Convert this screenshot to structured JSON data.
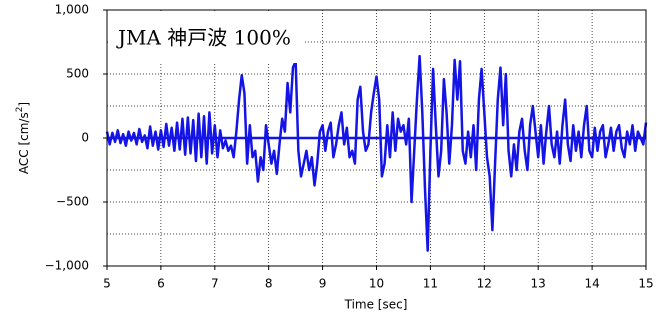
{
  "chart_data": {
    "type": "line",
    "annotation": "JMA 神戸波 100%",
    "xlabel": "Time [sec]",
    "ylabel": "ACC [cm/s",
    "ylabel_sup": "2",
    "ylabel_end": "]",
    "xlim": [
      5,
      15
    ],
    "xticks": [
      5,
      6,
      7,
      8,
      9,
      10,
      11,
      12,
      13,
      14,
      15
    ],
    "ylim": [
      -1000,
      1000
    ],
    "yticks": [
      {
        "value": -1000,
        "label": "−1,000"
      },
      {
        "value": -500,
        "label": "−500"
      },
      0,
      500,
      {
        "value": 1000,
        "label": "1,000"
      }
    ],
    "yminor_grid": [
      -750,
      -250,
      250,
      750
    ],
    "grid": true,
    "color": "#1414e6",
    "x": [
      5,
      5.05,
      5.1,
      5.15,
      5.2,
      5.25,
      5.3,
      5.35,
      5.4,
      5.45,
      5.5,
      5.55,
      5.6,
      5.65,
      5.7,
      5.75,
      5.8,
      5.85,
      5.9,
      5.95,
      6,
      6.05,
      6.1,
      6.15,
      6.2,
      6.25,
      6.3,
      6.35,
      6.4,
      6.45,
      6.5,
      6.55,
      6.6,
      6.65,
      6.7,
      6.75,
      6.8,
      6.85,
      6.9,
      6.95,
      7,
      7.05,
      7.1,
      7.15,
      7.2,
      7.25,
      7.3,
      7.35,
      7.4,
      7.45,
      7.5,
      7.55,
      7.6,
      7.65,
      7.7,
      7.75,
      7.8,
      7.85,
      7.9,
      7.95,
      8,
      8.05,
      8.1,
      8.15,
      8.2,
      8.25,
      8.3,
      8.35,
      8.4,
      8.45,
      8.5,
      8.55,
      8.6,
      8.65,
      8.7,
      8.75,
      8.8,
      8.85,
      8.9,
      8.95,
      9,
      9.05,
      9.1,
      9.15,
      9.2,
      9.25,
      9.3,
      9.35,
      9.4,
      9.45,
      9.5,
      9.55,
      9.6,
      9.65,
      9.7,
      9.75,
      9.8,
      9.85,
      9.9,
      9.95,
      10,
      10.05,
      10.1,
      10.15,
      10.2,
      10.25,
      10.3,
      10.35,
      10.4,
      10.45,
      10.5,
      10.55,
      10.6,
      10.65,
      10.7,
      10.75,
      10.8,
      10.85,
      10.9,
      10.95,
      11,
      11.05,
      11.1,
      11.15,
      11.2,
      11.25,
      11.3,
      11.35,
      11.4,
      11.45,
      11.5,
      11.55,
      11.6,
      11.65,
      11.7,
      11.75,
      11.8,
      11.85,
      11.9,
      11.95,
      12,
      12.05,
      12.1,
      12.15,
      12.2,
      12.25,
      12.3,
      12.35,
      12.4,
      12.45,
      12.5,
      12.55,
      12.6,
      12.65,
      12.7,
      12.75,
      12.8,
      12.85,
      12.9,
      12.95,
      13,
      13.05,
      13.1,
      13.15,
      13.2,
      13.25,
      13.3,
      13.35,
      13.4,
      13.45,
      13.5,
      13.55,
      13.6,
      13.65,
      13.7,
      13.75,
      13.8,
      13.85,
      13.9,
      13.95,
      14,
      14.05,
      14.1,
      14.15,
      14.2,
      14.25,
      14.3,
      14.35,
      14.4,
      14.45,
      14.5,
      14.55,
      14.6,
      14.65,
      14.7,
      14.75,
      14.8,
      14.85,
      14.9,
      14.95,
      15
    ],
    "values": [
      50,
      -50,
      40,
      -30,
      60,
      -40,
      30,
      -60,
      50,
      -20,
      40,
      -50,
      70,
      -30,
      20,
      -80,
      90,
      -60,
      50,
      -90,
      60,
      -70,
      110,
      -60,
      80,
      -100,
      120,
      -90,
      150,
      -130,
      160,
      -120,
      140,
      -180,
      190,
      -150,
      170,
      -200,
      200,
      -120,
      100,
      -150,
      60,
      -80,
      -20,
      -100,
      -60,
      -150,
      50,
      300,
      490,
      350,
      -200,
      100,
      -150,
      -100,
      -340,
      -150,
      -250,
      100,
      -50,
      -200,
      -100,
      -280,
      -50,
      150,
      50,
      430,
      200,
      550,
      600,
      -100,
      -300,
      -200,
      -100,
      -250,
      -150,
      -370,
      -200,
      50,
      100,
      -100,
      50,
      120,
      -150,
      -50,
      100,
      200,
      -50,
      80,
      -150,
      -100,
      -200,
      300,
      400,
      50,
      -100,
      -50,
      200,
      350,
      480,
      300,
      -300,
      -200,
      100,
      -150,
      200,
      -100,
      150,
      50,
      100,
      -50,
      150,
      -500,
      -100,
      300,
      640,
      200,
      -400,
      -880,
      -100,
      540,
      100,
      -300,
      -100,
      460,
      200,
      -200,
      100,
      610,
      300,
      600,
      -100,
      -200,
      50,
      -150,
      100,
      -250,
      300,
      540,
      200,
      -150,
      -300,
      -720,
      -200,
      300,
      550,
      100,
      500,
      -100,
      -300,
      -50,
      -250,
      50,
      150,
      -100,
      -250,
      100,
      250,
      50,
      -150,
      100,
      -200,
      50,
      250,
      -50,
      -150,
      50,
      -200,
      100,
      300,
      -50,
      -180,
      100,
      -100,
      50,
      -150,
      100,
      250,
      -100,
      -150,
      80,
      -100,
      50,
      100,
      -150,
      -50,
      80,
      -100,
      50,
      100,
      -80,
      -150,
      50,
      -50,
      100,
      -100,
      50,
      0,
      -50,
      120
    ]
  }
}
